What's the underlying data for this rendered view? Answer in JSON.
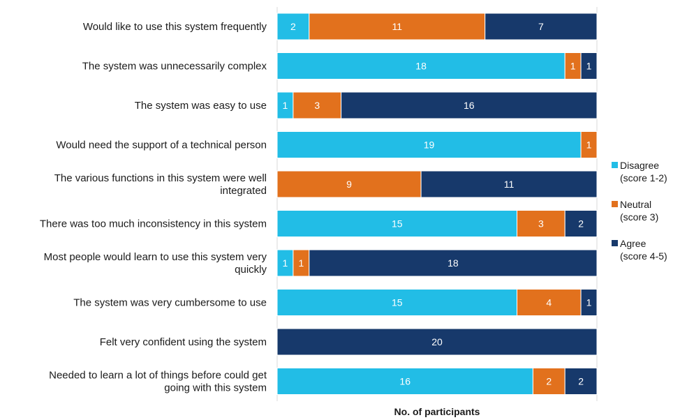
{
  "chart_data": {
    "type": "bar",
    "orientation": "horizontal",
    "stacked": true,
    "categories": [
      [
        "Would like to use this system frequently"
      ],
      [
        "The system was unnecessarily complex"
      ],
      [
        "The system was easy to use"
      ],
      [
        "Would need the support of a technical person"
      ],
      [
        "The various functions in this system were well",
        "integrated"
      ],
      [
        "There was too much inconsistency in this system"
      ],
      [
        "Most people would learn to use this system very",
        "quickly"
      ],
      [
        "The system was very cumbersome to use"
      ],
      [
        "Felt very confident using the system"
      ],
      [
        "Needed to learn a lot of things before could get",
        "going with this system"
      ]
    ],
    "series": [
      {
        "name": [
          "Disagree",
          "(score 1-2)"
        ],
        "color": "#22bde6",
        "values": [
          2,
          18,
          1,
          19,
          0,
          15,
          1,
          15,
          0,
          16
        ]
      },
      {
        "name": [
          "Neutral",
          "(score 3)"
        ],
        "color": "#e2711d",
        "values": [
          11,
          1,
          3,
          1,
          9,
          3,
          1,
          4,
          0,
          2
        ]
      },
      {
        "name": [
          "Agree",
          "(score 4-5)"
        ],
        "color": "#17396b",
        "values": [
          7,
          1,
          16,
          0,
          11,
          2,
          18,
          1,
          20,
          2
        ]
      }
    ],
    "xlim": [
      0,
      20
    ],
    "xlabel": "No. of participants",
    "title": "",
    "grid": false,
    "legend_position": "right"
  }
}
